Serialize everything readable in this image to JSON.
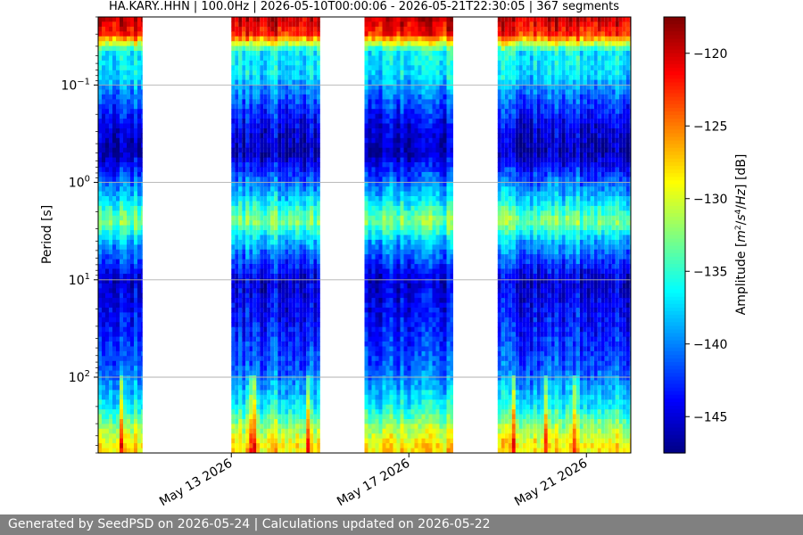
{
  "chart_data": {
    "type": "heatmap",
    "title": "HA.KARY..HHN | 100.0Hz | 2026-05-10T00:00:06 - 2026-05-21T22:30:05 | 367 segments",
    "ylabel": "Period [s]",
    "xlabel": "",
    "x_range": [
      "2026-05-10",
      "2026-05-22"
    ],
    "y_scale": "log",
    "y_inverted": true,
    "y_range": [
      0.02,
      600
    ],
    "y_ticks": [
      {
        "value": 0.1,
        "base": "10",
        "exp": "−1"
      },
      {
        "value": 1,
        "base": "10",
        "exp": "0"
      },
      {
        "value": 10,
        "base": "10",
        "exp": "1"
      },
      {
        "value": 100,
        "base": "10",
        "exp": "2"
      }
    ],
    "x_ticks": [
      {
        "date": "2026-05-13",
        "label": "May 13 2026"
      },
      {
        "date": "2026-05-17",
        "label": "May 17 2026"
      },
      {
        "date": "2026-05-21",
        "label": "May 21 2026"
      }
    ],
    "grid": "horizontal",
    "data_segments": [
      {
        "start": "2026-05-10",
        "end": "2026-05-11"
      },
      {
        "start": "2026-05-13",
        "end": "2026-05-15"
      },
      {
        "start": "2026-05-16",
        "end": "2026-05-18"
      },
      {
        "start": "2026-05-19",
        "end": "2026-05-22"
      }
    ],
    "colorbar": {
      "label": "Amplitude [m²/s⁴/Hz] [dB]",
      "range": [
        -147.5,
        -117.5
      ],
      "ticks": [
        "−120",
        "−125",
        "−130",
        "−135",
        "−140",
        "−145"
      ],
      "tick_values": [
        -120,
        -125,
        -130,
        -135,
        -140,
        -145
      ],
      "colormap": "jet"
    },
    "amplitude_profile": [
      {
        "period": 0.02,
        "db": -119
      },
      {
        "period": 0.03,
        "db": -122
      },
      {
        "period": 0.045,
        "db": -136
      },
      {
        "period": 0.08,
        "db": -137
      },
      {
        "period": 0.12,
        "db": -140
      },
      {
        "period": 0.25,
        "db": -144
      },
      {
        "period": 0.5,
        "db": -146
      },
      {
        "period": 1.5,
        "db": -137
      },
      {
        "period": 2.5,
        "db": -132
      },
      {
        "period": 4,
        "db": -138
      },
      {
        "period": 10,
        "db": -145
      },
      {
        "period": 30,
        "db": -143
      },
      {
        "period": 80,
        "db": -141
      },
      {
        "period": 200,
        "db": -136
      },
      {
        "period": 300,
        "db": -132
      },
      {
        "period": 500,
        "db": -128
      }
    ]
  },
  "footer": {
    "text": "Generated by SeedPSD on 2026-05-24 | Calculations updated on 2026-05-22"
  },
  "colors": {
    "footer_bg": "#808080",
    "footer_text": "#ffffff",
    "grid": "#b0b0b0"
  }
}
